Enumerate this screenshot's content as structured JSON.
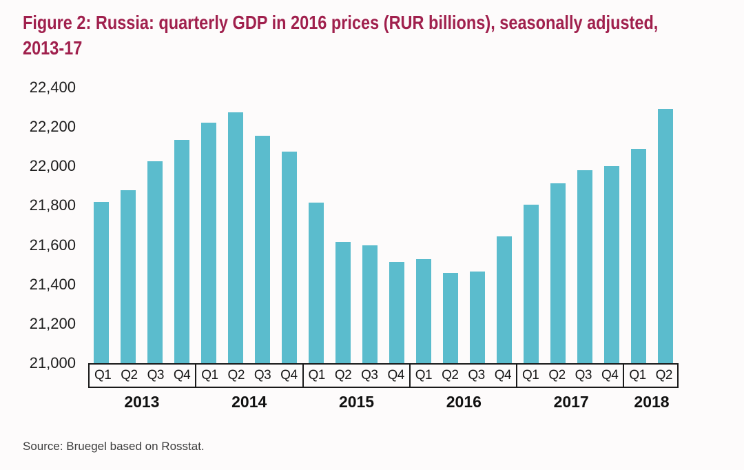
{
  "header": {
    "title_line1": "Figure 2: Russia: quarterly GDP in 2016 prices (RUR billions), seasonally adjusted,",
    "title_line2": "2013-17"
  },
  "chart_data": {
    "type": "bar",
    "title": "Figure 2: Russia: quarterly GDP in 2016 prices (RUR billions), seasonally adjusted, 2013-17",
    "xlabel": "",
    "ylabel": "",
    "ylim": [
      21000,
      22400
    ],
    "ytick_step": 200,
    "ytick_labels_top_to_bottom": [
      "22,400",
      "22,200",
      "22,000",
      "21,800",
      "21,600",
      "21,400",
      "21,200",
      "21,000"
    ],
    "grid": false,
    "legend": false,
    "bar_color": "#5BBCCD",
    "categories": [
      "2013 Q1",
      "2013 Q2",
      "2013 Q3",
      "2013 Q4",
      "2014 Q1",
      "2014 Q2",
      "2014 Q3",
      "2014 Q4",
      "2015 Q1",
      "2015 Q2",
      "2015 Q3",
      "2015 Q4",
      "2016 Q1",
      "2016 Q2",
      "2016 Q3",
      "2016 Q4",
      "2017 Q1",
      "2017 Q2",
      "2017 Q3",
      "2017 Q4",
      "2018 Q1",
      "2018 Q2"
    ],
    "values": [
      21820,
      21880,
      22025,
      22135,
      22220,
      22275,
      22155,
      22075,
      21815,
      21615,
      21600,
      21515,
      21530,
      21460,
      21465,
      21645,
      21805,
      21915,
      21980,
      22000,
      22090,
      22290
    ],
    "year_groups": [
      {
        "year": "2013",
        "quarters": [
          "Q1",
          "Q2",
          "Q3",
          "Q4"
        ]
      },
      {
        "year": "2014",
        "quarters": [
          "Q1",
          "Q2",
          "Q3",
          "Q4"
        ]
      },
      {
        "year": "2015",
        "quarters": [
          "Q1",
          "Q2",
          "Q3",
          "Q4"
        ]
      },
      {
        "year": "2016",
        "quarters": [
          "Q1",
          "Q2",
          "Q3",
          "Q4"
        ]
      },
      {
        "year": "2017",
        "quarters": [
          "Q1",
          "Q2",
          "Q3",
          "Q4"
        ]
      },
      {
        "year": "2018",
        "quarters": [
          "Q1",
          "Q2"
        ]
      }
    ]
  },
  "footer": {
    "source_note": "Source: Bruegel based on Rosstat."
  },
  "colors": {
    "title": "#A0204D",
    "bar": "#5BBCCD",
    "axis_border": "#1A1A1A",
    "tick_text": "#1B1B1B",
    "source_text": "#3C3C3C",
    "background": "#FDFBFB"
  }
}
